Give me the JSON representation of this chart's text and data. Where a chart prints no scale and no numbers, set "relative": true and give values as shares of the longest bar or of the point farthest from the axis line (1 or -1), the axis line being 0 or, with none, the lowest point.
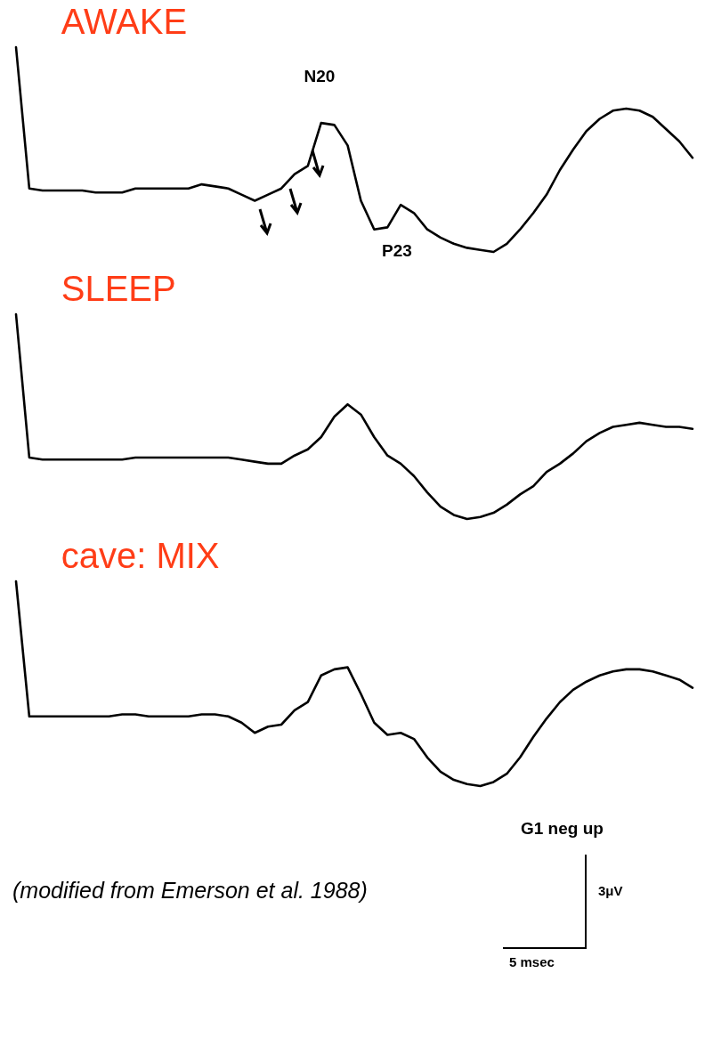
{
  "chart_data": [
    {
      "type": "line",
      "title": "AWAKE",
      "relative": true,
      "categories": [
        null,
        null,
        null,
        null,
        null,
        null,
        null,
        null,
        null,
        null,
        null,
        null,
        null,
        null,
        null,
        null,
        null,
        null,
        null,
        null,
        null,
        null,
        null,
        null,
        null,
        null,
        null,
        null,
        null,
        null,
        null,
        null,
        null,
        null,
        null,
        null,
        null,
        null,
        null,
        null,
        null,
        null,
        null,
        null,
        null,
        null,
        null,
        null,
        null,
        null,
        null,
        null
      ],
      "series": [
        {
          "color": "#000000",
          "values": [
            1.0,
            0.31,
            0.3,
            0.3,
            0.3,
            0.3,
            0.29,
            0.29,
            0.29,
            0.31,
            0.31,
            0.31,
            0.31,
            0.31,
            0.33,
            0.32,
            0.31,
            0.28,
            0.25,
            0.28,
            0.31,
            0.38,
            0.42,
            0.63,
            0.62,
            0.52,
            0.25,
            0.11,
            0.12,
            0.23,
            0.19,
            0.11,
            0.07,
            0.04,
            0.02,
            0.01,
            0.0,
            0.04,
            0.11,
            0.19,
            0.28,
            0.4,
            0.5,
            0.59,
            0.65,
            0.69,
            0.7,
            0.69,
            0.66,
            0.6,
            0.54,
            0.46
          ]
        }
      ],
      "annotations": [
        "N20",
        "P23"
      ]
    },
    {
      "type": "line",
      "title": "SLEEP",
      "relative": true,
      "categories": [
        null,
        null,
        null,
        null,
        null,
        null,
        null,
        null,
        null,
        null,
        null,
        null,
        null,
        null,
        null,
        null,
        null,
        null,
        null,
        null,
        null,
        null,
        null,
        null,
        null,
        null,
        null,
        null,
        null,
        null,
        null,
        null,
        null,
        null,
        null,
        null,
        null,
        null,
        null,
        null,
        null,
        null,
        null,
        null,
        null,
        null,
        null,
        null,
        null,
        null,
        null,
        null
      ],
      "series": [
        {
          "color": "#000000",
          "values": [
            1.0,
            0.3,
            0.29,
            0.29,
            0.29,
            0.29,
            0.29,
            0.29,
            0.29,
            0.3,
            0.3,
            0.3,
            0.3,
            0.3,
            0.3,
            0.3,
            0.3,
            0.29,
            0.28,
            0.27,
            0.27,
            0.31,
            0.34,
            0.4,
            0.5,
            0.56,
            0.51,
            0.4,
            0.31,
            0.27,
            0.21,
            0.13,
            0.06,
            0.02,
            0.0,
            0.01,
            0.03,
            0.07,
            0.12,
            0.16,
            0.23,
            0.27,
            0.32,
            0.38,
            0.42,
            0.45,
            0.46,
            0.47,
            0.46,
            0.45,
            0.45,
            0.44
          ]
        }
      ]
    },
    {
      "type": "line",
      "title": "cave: MIX",
      "relative": true,
      "categories": [
        null,
        null,
        null,
        null,
        null,
        null,
        null,
        null,
        null,
        null,
        null,
        null,
        null,
        null,
        null,
        null,
        null,
        null,
        null,
        null,
        null,
        null,
        null,
        null,
        null,
        null,
        null,
        null,
        null,
        null,
        null,
        null,
        null,
        null,
        null,
        null,
        null,
        null,
        null,
        null,
        null,
        null,
        null,
        null,
        null,
        null,
        null,
        null,
        null,
        null,
        null,
        null
      ],
      "series": [
        {
          "color": "#000000",
          "values": [
            1.0,
            0.34,
            0.34,
            0.34,
            0.34,
            0.34,
            0.34,
            0.34,
            0.35,
            0.35,
            0.34,
            0.34,
            0.34,
            0.34,
            0.35,
            0.35,
            0.34,
            0.31,
            0.26,
            0.29,
            0.3,
            0.37,
            0.41,
            0.54,
            0.57,
            0.58,
            0.45,
            0.31,
            0.25,
            0.26,
            0.23,
            0.14,
            0.07,
            0.03,
            0.01,
            0.0,
            0.02,
            0.06,
            0.14,
            0.24,
            0.33,
            0.41,
            0.47,
            0.51,
            0.54,
            0.56,
            0.57,
            0.57,
            0.56,
            0.54,
            0.52,
            0.48
          ]
        }
      ],
      "annotations": [
        "G1 neg up",
        "3μV",
        "5 msec",
        "(modified from Emerson et al. 1988)"
      ]
    }
  ]
}
